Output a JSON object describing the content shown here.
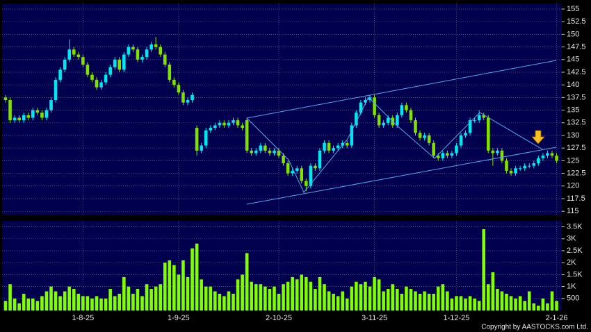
{
  "chart_data": {
    "type": "candlestick",
    "categories": [
      null,
      null,
      null,
      null,
      null,
      null,
      null,
      null,
      null,
      null,
      null,
      null,
      null,
      null,
      null,
      null,
      null,
      "1-8-25",
      null,
      null,
      null,
      null,
      null,
      null,
      null,
      null,
      null,
      null,
      null,
      null,
      null,
      null,
      null,
      null,
      null,
      null,
      null,
      null,
      "1-9-25",
      null,
      null,
      null,
      null,
      null,
      null,
      null,
      null,
      null,
      null,
      null,
      null,
      null,
      null,
      null,
      null,
      null,
      null,
      null,
      null,
      null,
      "2-10-25",
      null,
      null,
      null,
      null,
      null,
      null,
      null,
      null,
      null,
      null,
      null,
      null,
      null,
      null,
      null,
      null,
      null,
      null,
      null,
      null,
      "3-11-25",
      null,
      null,
      null,
      null,
      null,
      null,
      null,
      null,
      null,
      null,
      null,
      null,
      null,
      null,
      null,
      null,
      null,
      "1-12-25",
      null,
      null,
      null,
      null,
      null,
      null,
      null,
      null,
      null,
      null,
      null,
      null,
      null,
      null,
      null,
      null,
      null,
      null,
      null,
      null,
      null,
      "2-1-26"
    ],
    "open": [
      137.5,
      137,
      133,
      133.5,
      133,
      134,
      133.5,
      135,
      134.5,
      133.5,
      135,
      137,
      141,
      143,
      145,
      147,
      146,
      145.5,
      144,
      142,
      141,
      139.5,
      140.5,
      142,
      143.5,
      145,
      143,
      146,
      147.5,
      147,
      145,
      145.5,
      147,
      148,
      147.5,
      146,
      144,
      141,
      140,
      138.5,
      136.5,
      137,
      131.5,
      127,
      128,
      131,
      131.5,
      132,
      132.5,
      132,
      132.5,
      133,
      132,
      133,
      127,
      126.5,
      127,
      128,
      127,
      126.5,
      127,
      126,
      124.5,
      122.5,
      123,
      123.5,
      121,
      120,
      124,
      123.5,
      127,
      128.5,
      127,
      127.5,
      128,
      128.5,
      128,
      132,
      134.5,
      136.5,
      137,
      137.5,
      134,
      132,
      132.5,
      133.5,
      132,
      134,
      136,
      135,
      133,
      130.5,
      129.5,
      130,
      128.5,
      126,
      125.5,
      126.5,
      126,
      126.5,
      128,
      130,
      130.5,
      133,
      133,
      134,
      133.5,
      127,
      126.5,
      127,
      125,
      123,
      122.5,
      123.5,
      123.5,
      124,
      124,
      124.5,
      125.5,
      126,
      126.5,
      126
    ],
    "high": [
      138,
      137.5,
      134,
      134,
      134.5,
      134.5,
      135.5,
      135.5,
      135,
      135.5,
      137.5,
      141.5,
      143.5,
      145.5,
      149,
      147.5,
      146.5,
      146,
      144.5,
      142.5,
      141.5,
      141,
      142.5,
      144,
      145.5,
      145.5,
      146.5,
      148,
      148,
      147.5,
      146,
      147.5,
      148.5,
      149.5,
      148,
      146.5,
      144.5,
      141.5,
      140.5,
      139,
      137.5,
      138.5,
      132,
      128.5,
      131.5,
      132,
      132.5,
      133,
      133,
      133,
      133.5,
      133.5,
      132.5,
      133.5,
      127.5,
      127.5,
      128.5,
      128.5,
      127.5,
      127.5,
      127.5,
      126.5,
      125,
      123.5,
      124,
      124,
      121.5,
      124.5,
      124.5,
      127.5,
      129,
      129,
      128,
      128.5,
      129,
      129,
      132.5,
      135,
      137,
      137.5,
      138,
      138,
      134.5,
      133,
      134,
      134,
      134.5,
      136.5,
      136.5,
      135.5,
      133.5,
      131,
      130.5,
      130.5,
      129,
      126.5,
      127,
      127,
      127,
      128.5,
      130.5,
      131,
      133.5,
      133.5,
      135,
      134.5,
      134,
      127.5,
      127.5,
      127.5,
      125.5,
      123.5,
      124,
      124,
      124.5,
      124.5,
      125,
      126,
      126.5,
      127,
      127,
      126.5
    ],
    "low": [
      136.5,
      132.5,
      132.5,
      132.5,
      132.5,
      133,
      133,
      134,
      133,
      133,
      134.5,
      136.5,
      140.5,
      142.5,
      144.5,
      145.5,
      145,
      143.5,
      141.5,
      140.5,
      139,
      139,
      140,
      141.5,
      143,
      142.5,
      142.5,
      145.5,
      146.5,
      144.5,
      144.5,
      145,
      146.5,
      147,
      145.5,
      143.5,
      140.5,
      139.5,
      138,
      136,
      136,
      136.5,
      126,
      126.5,
      127.5,
      130.5,
      131,
      131.5,
      131.5,
      131.5,
      132,
      131.5,
      131,
      126.5,
      126,
      126,
      126.5,
      126.5,
      126,
      126,
      125.5,
      124,
      122,
      122,
      122.5,
      120.5,
      119,
      119.5,
      123,
      123,
      126.5,
      126.5,
      126.5,
      127,
      127.5,
      127.5,
      127.5,
      131.5,
      134,
      136,
      136.5,
      133.5,
      131.5,
      131.5,
      132,
      131.5,
      131.5,
      133.5,
      134.5,
      132.5,
      130,
      129,
      129,
      128,
      125.5,
      125,
      125,
      125.5,
      125.5,
      126,
      127.5,
      129.5,
      130,
      132.5,
      132.5,
      133,
      126.5,
      124,
      126,
      124.5,
      122.5,
      122,
      122,
      123,
      123,
      123.5,
      123.5,
      124,
      125,
      125.5,
      125.5,
      124.5
    ],
    "close": [
      137,
      133,
      133.5,
      133,
      134,
      133.5,
      135,
      134.5,
      133.5,
      135,
      137,
      141,
      143,
      145,
      147,
      146,
      145.5,
      144,
      142,
      141,
      139.5,
      140.5,
      142,
      143.5,
      145,
      143,
      146,
      147.5,
      147,
      145,
      145.5,
      147,
      148,
      147.5,
      146,
      144,
      141,
      140,
      138.5,
      136.5,
      137,
      138,
      127,
      128,
      131,
      131.5,
      132,
      132.5,
      132,
      132.5,
      133,
      132,
      131.5,
      127,
      126.5,
      127,
      128,
      127,
      126.5,
      127,
      126,
      124.5,
      122.5,
      123,
      123.5,
      121,
      120,
      124,
      123.5,
      127,
      128.5,
      127,
      127.5,
      128,
      128.5,
      128,
      132,
      134.5,
      136.5,
      137,
      137.5,
      134,
      132,
      132.5,
      133.5,
      132,
      134,
      136,
      135,
      133,
      130.5,
      129.5,
      130,
      128.5,
      126,
      125.5,
      126.5,
      126,
      126.5,
      128,
      130,
      130.5,
      133,
      133,
      134,
      133.5,
      127,
      126.5,
      127,
      125,
      123,
      122.5,
      123.5,
      123.5,
      124,
      124,
      124.5,
      125.5,
      126,
      126.5,
      126,
      125
    ],
    "volume": [
      400,
      1100,
      500,
      300,
      700,
      500,
      500,
      400,
      600,
      800,
      1000,
      800,
      600,
      800,
      1000,
      900,
      700,
      600,
      600,
      500,
      600,
      500,
      500,
      900,
      600,
      700,
      1400,
      1000,
      700,
      900,
      600,
      1100,
      900,
      1000,
      1100,
      2000,
      2100,
      1900,
      1500,
      2100,
      1400,
      2600,
      2800,
      1300,
      1000,
      1000,
      800,
      700,
      600,
      800,
      700,
      1300,
      1500,
      2400,
      1200,
      1100,
      1100,
      1000,
      900,
      1000,
      700,
      1100,
      1200,
      1400,
      1300,
      1500,
      1400,
      1200,
      900,
      1400,
      1100,
      800,
      700,
      600,
      800,
      500,
      1000,
      1200,
      1100,
      1200,
      1000,
      1400,
      1300,
      800,
      900,
      1100,
      900,
      700,
      1000,
      900,
      800,
      700,
      800,
      700,
      700,
      1000,
      1100,
      800,
      500,
      600,
      600,
      500,
      600,
      500,
      400,
      3400,
      1100,
      1600,
      900,
      800,
      700,
      600,
      500,
      600,
      400,
      800,
      300,
      200,
      500,
      300,
      800,
      400
    ],
    "up_color": "#00e8f0",
    "down_color": "#80e000",
    "volume_color": "#80ff00",
    "ylim": [
      114.2,
      156.1
    ],
    "yticks": [
      115,
      117.5,
      120,
      122.5,
      125,
      127.5,
      130,
      132.5,
      135,
      137.5,
      140,
      142.5,
      145,
      147.5,
      150,
      152.5,
      155
    ],
    "vlim": [
      0,
      3750
    ],
    "vticks": [
      {
        "value": 500,
        "label": "500"
      },
      {
        "value": 1000,
        "label": "1K"
      },
      {
        "value": 1500,
        "label": "1.5K"
      },
      {
        "value": 2000,
        "label": "2K"
      },
      {
        "value": 2500,
        "label": "2.5K"
      },
      {
        "value": 3000,
        "label": "3K"
      },
      {
        "value": 3500,
        "label": "3.5K"
      }
    ],
    "grid": true,
    "copyright": "Copyright by AASTOCKS.com Ltd."
  }
}
